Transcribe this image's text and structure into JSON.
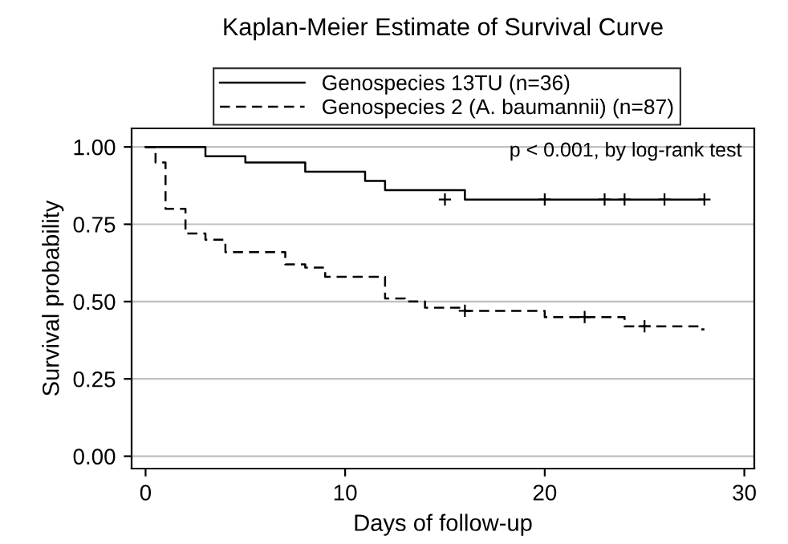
{
  "chart_data": {
    "type": "step",
    "title": "Kaplan-Meier Estimate of Survival Curve",
    "xlabel": "Days of follow-up",
    "ylabel": "Survival probability",
    "series": [
      {
        "name": "Genospecies 13TU (n=36)",
        "color": "#000000",
        "line_style": "solid",
        "x": [
          0,
          3,
          5,
          8,
          11,
          12,
          16,
          28
        ],
        "values": [
          1.0,
          0.97,
          0.95,
          0.92,
          0.89,
          0.86,
          0.83,
          0.83
        ]
      },
      {
        "name": "Genospecies 2 (A. baumannii) (n=87)",
        "color": "#000000",
        "line_style": "dashed",
        "x": [
          0,
          0.5,
          1,
          2,
          3,
          4,
          7,
          8,
          9,
          12,
          13,
          14,
          16,
          20,
          24,
          27.8,
          28
        ],
        "values": [
          1.0,
          0.95,
          0.8,
          0.72,
          0.7,
          0.66,
          0.62,
          0.61,
          0.58,
          0.51,
          0.5,
          0.48,
          0.47,
          0.45,
          0.42,
          0.41,
          0.41
        ]
      },
      {
        "type": "scatter",
        "marker": "cross",
        "color": "#000000",
        "x": [
          15,
          20,
          23,
          24,
          26,
          28
        ],
        "values": [
          0.83,
          0.83,
          0.83,
          0.83,
          0.83,
          0.83
        ]
      },
      {
        "type": "scatter",
        "marker": "cross",
        "color": "#000000",
        "x": [
          16,
          22,
          25
        ],
        "values": [
          0.47,
          0.45,
          0.42
        ]
      }
    ],
    "annotations": [
      "p < 0.001, by log-rank test"
    ],
    "xlim": [
      -0.7,
      30.5
    ],
    "ylim": [
      -0.04,
      1.06
    ],
    "xticks": [
      0,
      10,
      20,
      30
    ],
    "yticks": [
      {
        "value": 0,
        "label": "0.00"
      },
      {
        "value": 0.25,
        "label": "0.25"
      },
      {
        "value": 0.5,
        "label": "0.50"
      },
      {
        "value": 0.75,
        "label": "0.75"
      },
      {
        "value": 1,
        "label": "1.00"
      }
    ],
    "grid": "y",
    "legend": "top"
  }
}
